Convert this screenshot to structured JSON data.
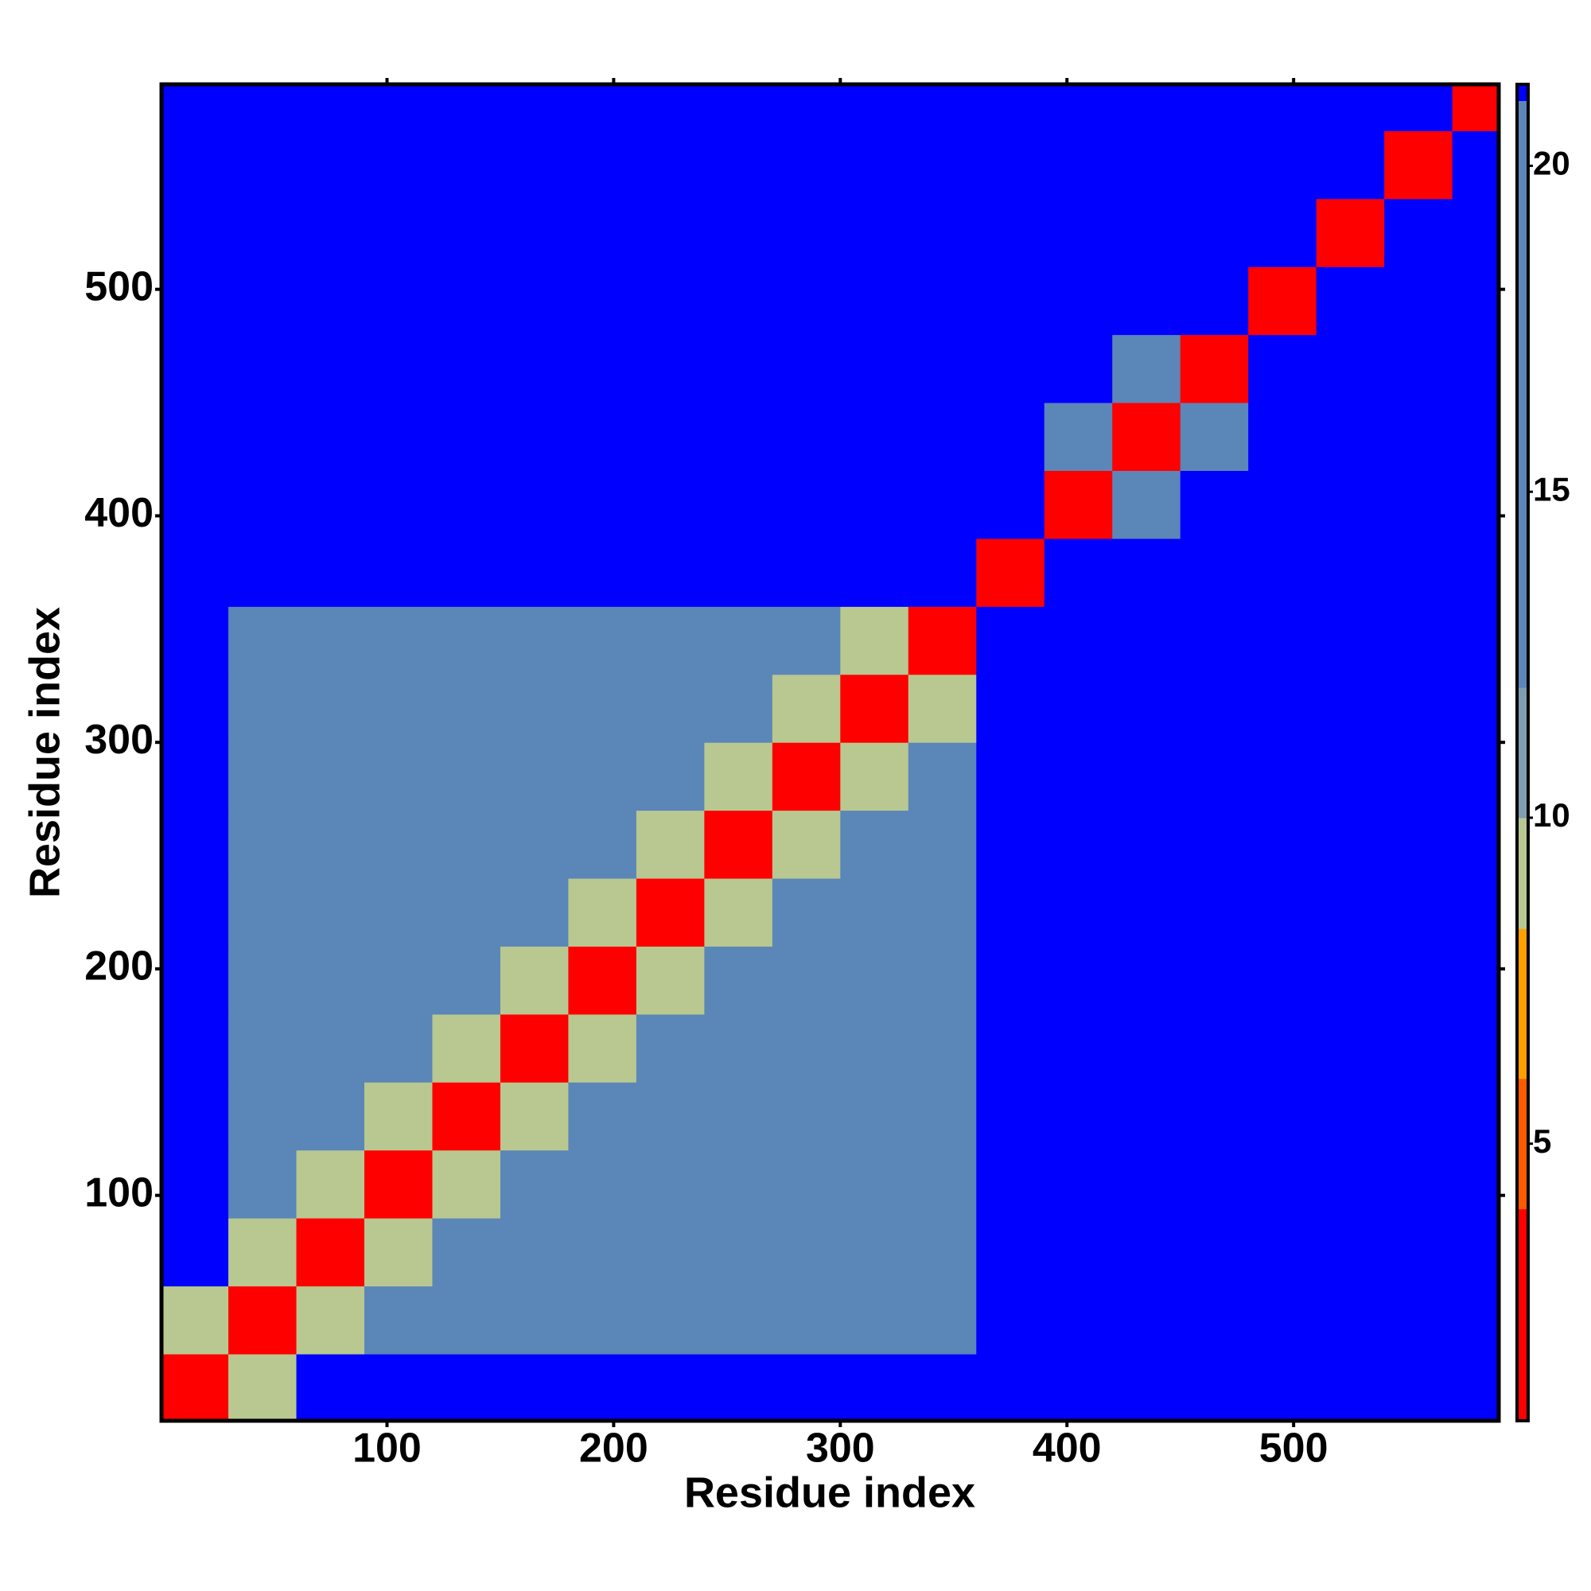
{
  "chart_data": {
    "type": "heatmap",
    "x_label": "Residue index",
    "y_label": "Residue index",
    "xlim": [
      0.5,
      590.5
    ],
    "ylim": [
      0.5,
      590.5
    ],
    "xticks": [
      100,
      200,
      300,
      400,
      500
    ],
    "yticks": [
      100,
      200,
      300,
      400,
      500
    ],
    "bins": [
      0,
      30,
      60,
      90,
      120,
      150,
      180,
      210,
      240,
      270,
      300,
      330,
      360,
      390,
      420,
      450,
      480,
      510,
      540,
      570,
      600
    ],
    "z": [
      [
        3,
        9,
        22,
        22,
        22,
        22,
        22,
        22,
        22,
        22,
        22,
        22,
        22,
        22,
        22,
        22,
        22,
        22,
        22,
        22
      ],
      [
        9,
        3,
        9,
        14,
        14,
        14,
        14,
        14,
        14,
        18,
        18,
        18,
        22,
        22,
        22,
        22,
        22,
        22,
        22,
        22
      ],
      [
        22,
        9,
        3,
        9,
        14,
        14,
        14,
        14,
        14,
        14,
        18,
        18,
        22,
        22,
        22,
        22,
        22,
        22,
        22,
        22
      ],
      [
        22,
        14,
        9,
        3,
        9,
        14,
        14,
        14,
        14,
        14,
        14,
        18,
        22,
        22,
        22,
        22,
        22,
        22,
        22,
        22
      ],
      [
        22,
        14,
        14,
        9,
        3,
        9,
        14,
        14,
        14,
        14,
        14,
        14,
        22,
        22,
        22,
        22,
        22,
        22,
        22,
        22
      ],
      [
        22,
        14,
        14,
        14,
        9,
        3,
        9,
        14,
        14,
        14,
        14,
        14,
        22,
        22,
        22,
        22,
        22,
        22,
        22,
        22
      ],
      [
        22,
        14,
        14,
        14,
        14,
        9,
        3,
        9,
        14,
        14,
        14,
        14,
        22,
        22,
        22,
        22,
        22,
        22,
        22,
        22
      ],
      [
        22,
        14,
        14,
        14,
        14,
        14,
        9,
        3,
        9,
        14,
        14,
        14,
        22,
        22,
        22,
        22,
        22,
        22,
        22,
        22
      ],
      [
        22,
        14,
        14,
        14,
        14,
        14,
        14,
        9,
        3,
        9,
        14,
        14,
        22,
        22,
        22,
        22,
        22,
        22,
        22,
        22
      ],
      [
        22,
        18,
        14,
        14,
        14,
        14,
        14,
        14,
        9,
        3,
        9,
        14,
        22,
        22,
        22,
        22,
        22,
        22,
        22,
        22
      ],
      [
        22,
        18,
        18,
        14,
        14,
        14,
        14,
        14,
        14,
        9,
        3,
        9,
        22,
        22,
        22,
        22,
        22,
        22,
        22,
        22
      ],
      [
        22,
        18,
        18,
        18,
        14,
        14,
        14,
        14,
        14,
        14,
        9,
        3,
        22,
        22,
        22,
        22,
        22,
        22,
        22,
        22
      ],
      [
        22,
        22,
        22,
        22,
        22,
        22,
        22,
        22,
        22,
        22,
        22,
        22,
        3,
        22,
        22,
        22,
        22,
        22,
        22,
        22
      ],
      [
        22,
        22,
        22,
        22,
        22,
        22,
        22,
        22,
        22,
        22,
        22,
        22,
        22,
        3,
        12,
        22,
        22,
        22,
        22,
        22
      ],
      [
        22,
        22,
        22,
        22,
        22,
        22,
        22,
        22,
        22,
        22,
        22,
        22,
        22,
        12,
        3,
        12,
        22,
        22,
        22,
        22
      ],
      [
        22,
        22,
        22,
        22,
        22,
        22,
        22,
        22,
        22,
        22,
        22,
        22,
        22,
        22,
        12,
        3,
        22,
        22,
        22,
        22
      ],
      [
        22,
        22,
        22,
        22,
        22,
        22,
        22,
        22,
        22,
        22,
        22,
        22,
        22,
        22,
        22,
        22,
        3,
        22,
        22,
        22
      ],
      [
        22,
        22,
        22,
        22,
        22,
        22,
        22,
        22,
        22,
        22,
        22,
        22,
        22,
        22,
        22,
        22,
        22,
        3,
        22,
        22
      ],
      [
        22,
        22,
        22,
        22,
        22,
        22,
        22,
        22,
        22,
        22,
        22,
        22,
        22,
        22,
        22,
        22,
        22,
        22,
        3,
        22
      ],
      [
        22,
        22,
        22,
        22,
        22,
        22,
        22,
        22,
        22,
        22,
        22,
        22,
        22,
        22,
        22,
        22,
        22,
        22,
        22,
        3
      ]
    ],
    "colorbar": {
      "lim": [
        0.75,
        21.25
      ],
      "ticks": [
        5,
        10,
        15,
        20
      ],
      "stops": [
        [
          0.75,
          "#ff0000"
        ],
        [
          4,
          "#ff5a00"
        ],
        [
          6,
          "#ffa000"
        ],
        [
          8.3,
          "#b8c890"
        ],
        [
          10,
          "#7f9fb0"
        ],
        [
          12,
          "#5b86b8"
        ],
        [
          21,
          "#0000ff"
        ]
      ]
    }
  }
}
